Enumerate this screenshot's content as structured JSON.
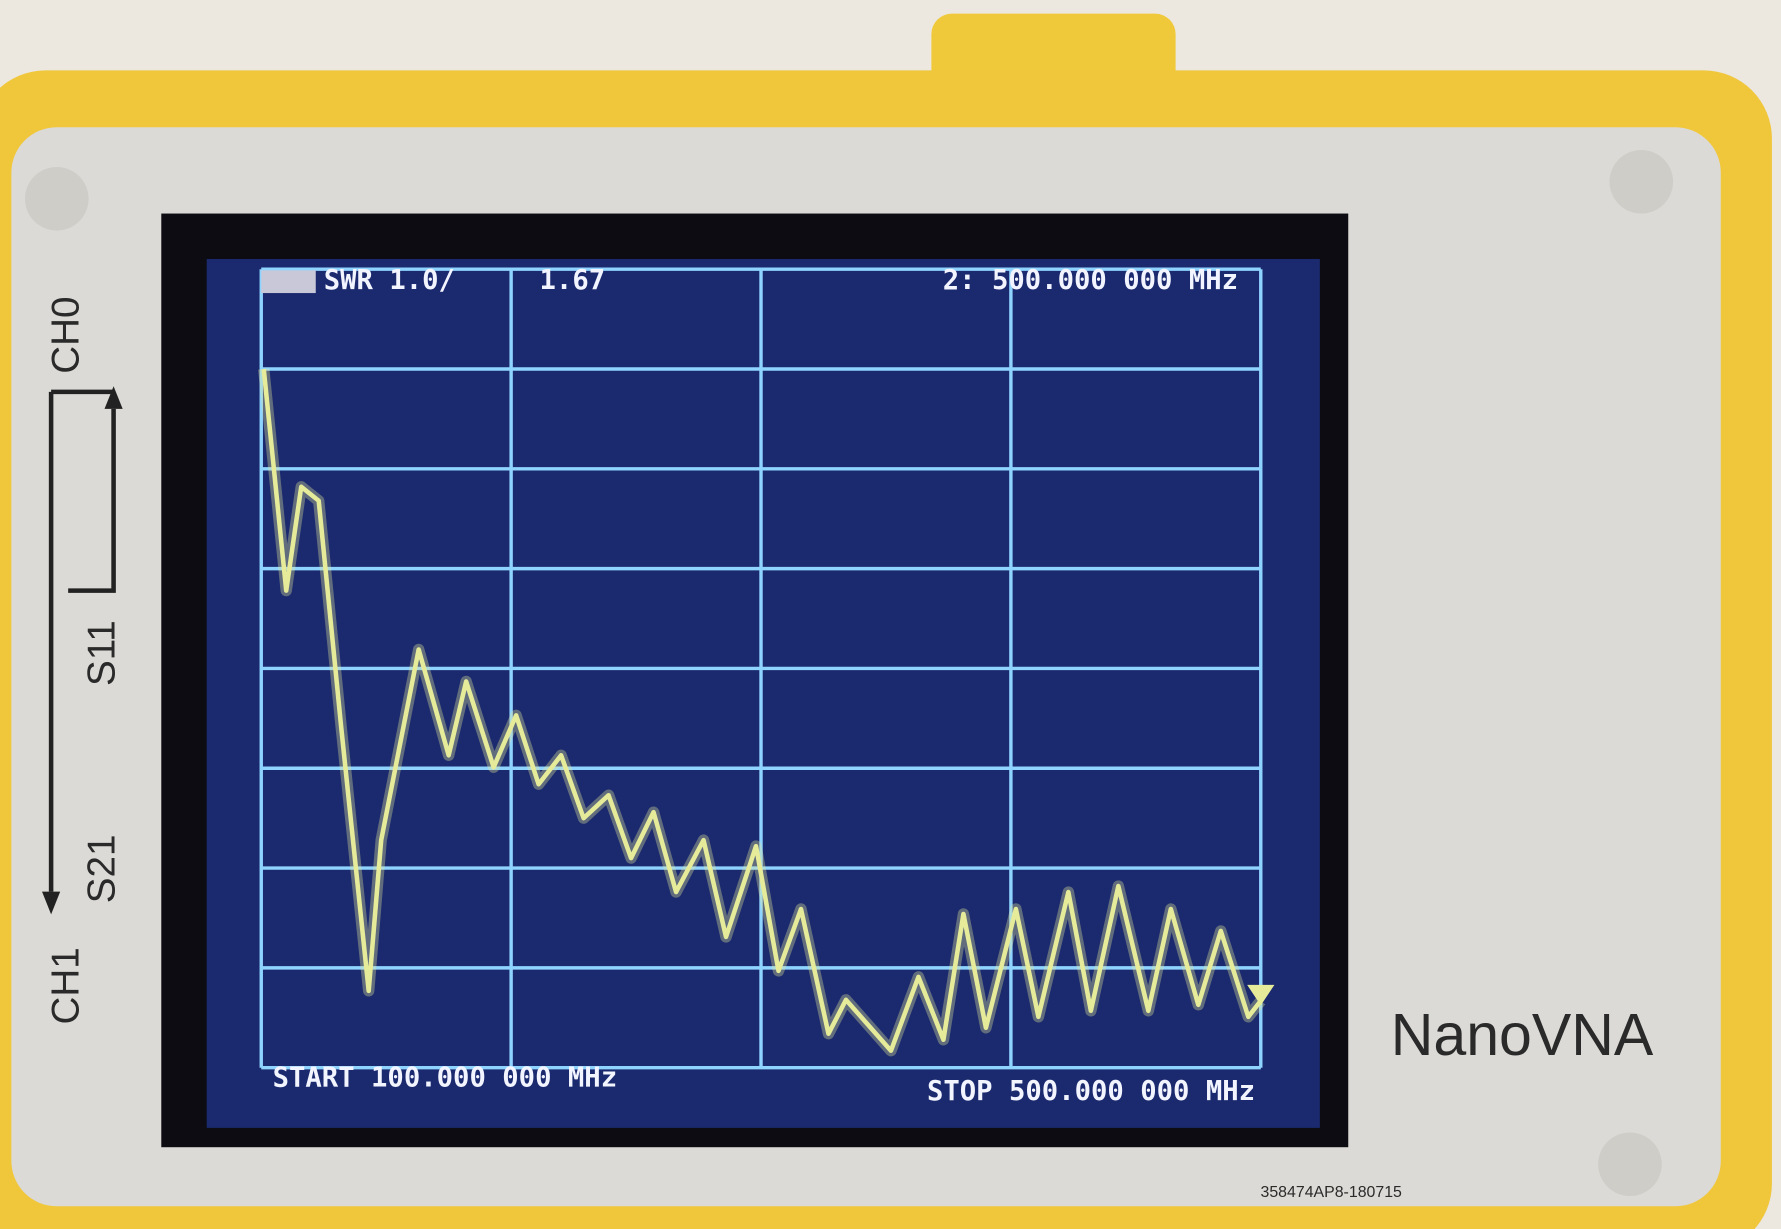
{
  "chart_data": {
    "type": "line",
    "annotations": [
      "SWR 1.0/",
      "1.67",
      "2: 500.000 000 MHz",
      "START 100.000 000 MHz",
      "STOP 500.000 000 MHz"
    ],
    "x": [
      101,
      110,
      116,
      123,
      132,
      143,
      148,
      163,
      175,
      182,
      193,
      202,
      211,
      220,
      229,
      239,
      248,
      257,
      266,
      277,
      286,
      298,
      307,
      316,
      327,
      334,
      352,
      363,
      373,
      381,
      390,
      402,
      411,
      423,
      432,
      443,
      455,
      464,
      475,
      484,
      495,
      500
    ],
    "values": [
      8.0,
      5.78,
      6.82,
      6.68,
      4.41,
      1.77,
      3.28,
      5.19,
      4.13,
      4.87,
      4.01,
      4.53,
      3.84,
      4.13,
      3.5,
      3.73,
      3.1,
      3.56,
      2.76,
      3.28,
      2.31,
      3.22,
      1.97,
      2.59,
      1.34,
      1.68,
      1.17,
      1.91,
      1.28,
      2.54,
      1.4,
      2.59,
      1.51,
      2.76,
      1.57,
      2.82,
      1.57,
      2.59,
      1.63,
      2.37,
      1.51,
      1.67
    ],
    "color": "#e6eb9a",
    "xlim": [
      100,
      500
    ],
    "ylim": [
      1,
      9
    ],
    "xticks": [
      100,
      200,
      300,
      400,
      500
    ],
    "yticks": [
      1,
      2,
      3,
      4,
      5,
      6,
      7,
      8,
      9
    ],
    "grid": true
  },
  "device": {
    "labels": [
      "CH0",
      "S11",
      "S21",
      "CH1"
    ],
    "brand": "NanoVNA",
    "serial": "358474AP8-180715"
  }
}
